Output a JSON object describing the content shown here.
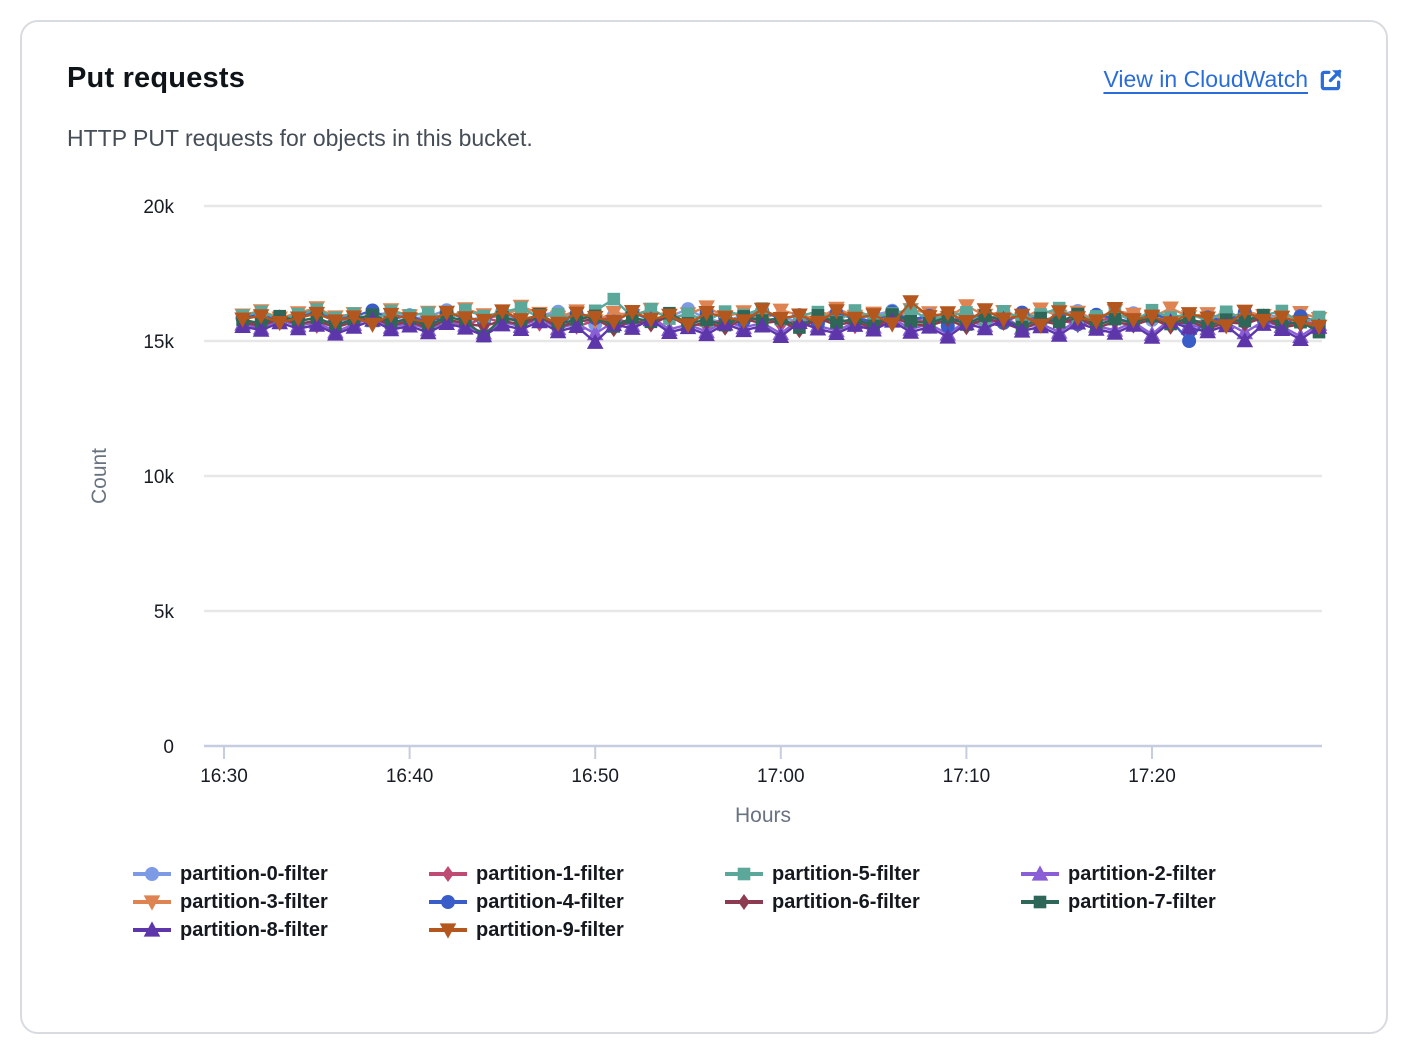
{
  "card": {
    "title": "Put requests",
    "subtitle": "HTTP PUT requests for objects in this bucket.",
    "link_label": "View in CloudWatch",
    "link_color": "#2a6dd8",
    "border_color": "#d8dbe0"
  },
  "chart_data": {
    "type": "line",
    "title": "Put requests",
    "xlabel": "Hours",
    "ylabel": "Count",
    "ylim": [
      0,
      20000
    ],
    "grid": true,
    "grid_color": "#e7e7e7",
    "axis_line_color": "#c6cde0",
    "y_ticks": [
      {
        "value": 0,
        "label": "0"
      },
      {
        "value": 5000,
        "label": "5k"
      },
      {
        "value": 10000,
        "label": "10k"
      },
      {
        "value": 15000,
        "label": "15k"
      },
      {
        "value": 20000,
        "label": "20k"
      }
    ],
    "x_ticks": [
      {
        "minutes": 990,
        "label": "16:30"
      },
      {
        "minutes": 1000,
        "label": "16:40"
      },
      {
        "minutes": 1010,
        "label": "16:50"
      },
      {
        "minutes": 1020,
        "label": "17:00"
      },
      {
        "minutes": 1030,
        "label": "17:10"
      },
      {
        "minutes": 1040,
        "label": "17:20"
      }
    ],
    "x_start_minutes": 991,
    "x_step_minutes": 1,
    "legend": {
      "position": "bottom",
      "order": [
        0,
        1,
        5,
        2,
        3,
        4,
        6,
        7,
        8,
        9
      ]
    },
    "series": [
      {
        "name": "partition-0-filter",
        "marker": "circle",
        "color": "#7D9BE4",
        "values": [
          15890,
          16020,
          15780,
          15930,
          16110,
          15840,
          15700,
          15960,
          16050,
          15820,
          15910,
          16140,
          15760,
          15880,
          16010,
          15700,
          15950,
          16080,
          15830,
          15620,
          15940,
          16060,
          15770,
          15900,
          16180,
          15810,
          15690,
          15980,
          16100,
          15850,
          15730,
          15920,
          16040,
          15790,
          15960,
          16120,
          15680,
          15870,
          16000,
          15760,
          15940,
          16070,
          15800,
          15650,
          15990,
          16110,
          15720,
          15860,
          16030,
          15780,
          15910,
          15600,
          15830,
          16050,
          15700,
          15880,
          15960,
          15740,
          15560
        ]
      },
      {
        "name": "partition-1-filter",
        "marker": "diamond",
        "color": "#BF4A73",
        "values": [
          15740,
          15610,
          15880,
          15720,
          15560,
          15830,
          15950,
          15680,
          15790,
          15620,
          15900,
          15750,
          15570,
          15860,
          15700,
          15930,
          15640,
          15810,
          15530,
          15760,
          15890,
          15600,
          15720,
          15970,
          15660,
          15540,
          15850,
          15710,
          15920,
          15590,
          15780,
          15630,
          15900,
          15550,
          15820,
          15690,
          15940,
          15600,
          15760,
          15870,
          15520,
          15700,
          15980,
          15640,
          15810,
          15580,
          15730,
          15890,
          15620,
          15950,
          15560,
          15770,
          15680,
          15840,
          15600,
          15910,
          15500,
          15720,
          15650
        ]
      },
      {
        "name": "partition-2-filter",
        "marker": "triangle-up",
        "color": "#8A5FD6",
        "values": [
          15630,
          15480,
          15790,
          15560,
          15700,
          15340,
          15620,
          15880,
          15510,
          15670,
          15420,
          15760,
          15590,
          15300,
          15710,
          15540,
          15830,
          15460,
          15650,
          15270,
          15720,
          15580,
          15900,
          15430,
          15610,
          15350,
          15740,
          15500,
          15670,
          15280,
          15800,
          15560,
          15380,
          15690,
          15520,
          15850,
          15440,
          15630,
          15260,
          15750,
          15570,
          15910,
          15480,
          15640,
          15330,
          15780,
          15550,
          15400,
          15700,
          15250,
          15820,
          15590,
          15460,
          15680,
          15310,
          15730,
          15540,
          15170,
          15620
        ]
      },
      {
        "name": "partition-3-filter",
        "marker": "triangle-down",
        "color": "#DE8452",
        "values": [
          15960,
          16120,
          15850,
          16040,
          16230,
          15890,
          16010,
          15760,
          16150,
          15930,
          16060,
          15800,
          16190,
          15970,
          15840,
          16280,
          16020,
          15880,
          16110,
          15750,
          16050,
          15940,
          16170,
          15820,
          16000,
          16260,
          15900,
          16080,
          15770,
          16140,
          15960,
          15830,
          16210,
          15910,
          16030,
          15780,
          16160,
          16040,
          15870,
          16300,
          15950,
          16090,
          15810,
          16180,
          15920,
          16060,
          15740,
          16130,
          15990,
          15860,
          16220,
          15900,
          16010,
          15790,
          16100,
          15940,
          15700,
          16050,
          15830
        ]
      },
      {
        "name": "partition-4-filter",
        "marker": "circle",
        "color": "#3A5CC8",
        "values": [
          15840,
          15990,
          15700,
          15880,
          16060,
          15760,
          15910,
          16130,
          15810,
          15950,
          15660,
          16020,
          15870,
          15730,
          16090,
          15800,
          15940,
          15610,
          16000,
          15850,
          15720,
          16070,
          15780,
          15920,
          15580,
          16040,
          15890,
          15750,
          16110,
          15820,
          15960,
          15640,
          16010,
          15860,
          15710,
          16080,
          15790,
          15930,
          15550,
          15990,
          15840,
          15670,
          16050,
          15760,
          15900,
          15620,
          15970,
          15830,
          15690,
          16030,
          15780,
          15000,
          15870,
          15740,
          16060,
          15810,
          15590,
          15920,
          15700
        ]
      },
      {
        "name": "partition-5-filter",
        "marker": "square",
        "color": "#5BA79A",
        "values": [
          15940,
          16080,
          15810,
          15990,
          16170,
          15860,
          16020,
          15740,
          16110,
          15950,
          16040,
          15780,
          16150,
          15920,
          16060,
          16230,
          15870,
          16000,
          15760,
          16120,
          16550,
          15900,
          16180,
          15830,
          16010,
          15750,
          16090,
          15960,
          16200,
          15810,
          15940,
          16070,
          15720,
          16130,
          15880,
          16020,
          16160,
          15790,
          15930,
          16060,
          15700,
          16100,
          15850,
          15980,
          16220,
          15770,
          15910,
          16040,
          15730,
          16140,
          15870,
          16000,
          15760,
          16080,
          15820,
          15950,
          16110,
          15690,
          15890
        ]
      },
      {
        "name": "partition-6-filter",
        "marker": "diamond",
        "color": "#8D3B50",
        "values": [
          15690,
          15560,
          15820,
          15640,
          15750,
          15500,
          15710,
          15870,
          15580,
          15730,
          15470,
          15800,
          15650,
          15540,
          15760,
          15600,
          15890,
          15520,
          15700,
          15830,
          15440,
          15770,
          15610,
          15930,
          15550,
          15680,
          15490,
          15810,
          15660,
          15740,
          15400,
          15850,
          15590,
          15720,
          15460,
          15880,
          15630,
          15560,
          15790,
          15510,
          15840,
          15670,
          15420,
          15750,
          15600,
          15900,
          15480,
          15710,
          15570,
          15820,
          15530,
          15760,
          15450,
          15690,
          15640,
          15860,
          15500,
          15620,
          15550
        ]
      },
      {
        "name": "partition-7-filter",
        "marker": "square",
        "color": "#2E6657",
        "values": [
          15790,
          15650,
          15920,
          15740,
          15860,
          15580,
          15810,
          15970,
          15680,
          15830,
          15560,
          15900,
          15750,
          15180,
          15880,
          15700,
          15990,
          15620,
          15800,
          15930,
          15540,
          15870,
          15710,
          16030,
          15650,
          15780,
          15590,
          15910,
          15760,
          15840,
          15500,
          15950,
          15690,
          15820,
          15560,
          15980,
          15730,
          15660,
          15890,
          15610,
          15940,
          15770,
          15520,
          15850,
          15700,
          16000,
          15580,
          15810,
          15670,
          15920,
          15630,
          15860,
          15550,
          15790,
          15740,
          15960,
          15600,
          15720,
          15330
        ]
      },
      {
        "name": "partition-8-filter",
        "marker": "triangle-up",
        "color": "#5D36A9",
        "values": [
          15540,
          15400,
          15680,
          15460,
          15590,
          15260,
          15510,
          15770,
          15420,
          15560,
          15310,
          15650,
          15480,
          15200,
          15600,
          15430,
          15720,
          15350,
          15540,
          14950,
          15610,
          15470,
          15790,
          15320,
          15500,
          15240,
          15630,
          15390,
          15560,
          15170,
          15690,
          15450,
          15280,
          15580,
          15410,
          15740,
          15330,
          15520,
          15150,
          15640,
          15460,
          15800,
          15370,
          15530,
          15220,
          15670,
          15440,
          15290,
          15590,
          15140,
          15710,
          15480,
          15350,
          15570,
          15010,
          15620,
          15430,
          15060,
          15510
        ]
      },
      {
        "name": "partition-9-filter",
        "marker": "triangle-down",
        "color": "#B4571F",
        "values": [
          15810,
          15930,
          15680,
          15850,
          16020,
          15740,
          15890,
          15620,
          15980,
          15820,
          15700,
          16060,
          15860,
          15760,
          16110,
          15790,
          15940,
          15650,
          16030,
          15870,
          15720,
          16090,
          15800,
          15950,
          15600,
          16050,
          15880,
          15750,
          16170,
          15830,
          15960,
          15690,
          16120,
          15840,
          15970,
          15630,
          16450,
          15900,
          16040,
          15720,
          16150,
          15810,
          15950,
          15580,
          16080,
          15860,
          15740,
          16200,
          15790,
          15920,
          15670,
          16010,
          15850,
          15560,
          16100,
          15760,
          15880,
          15690,
          15540
        ]
      }
    ]
  }
}
